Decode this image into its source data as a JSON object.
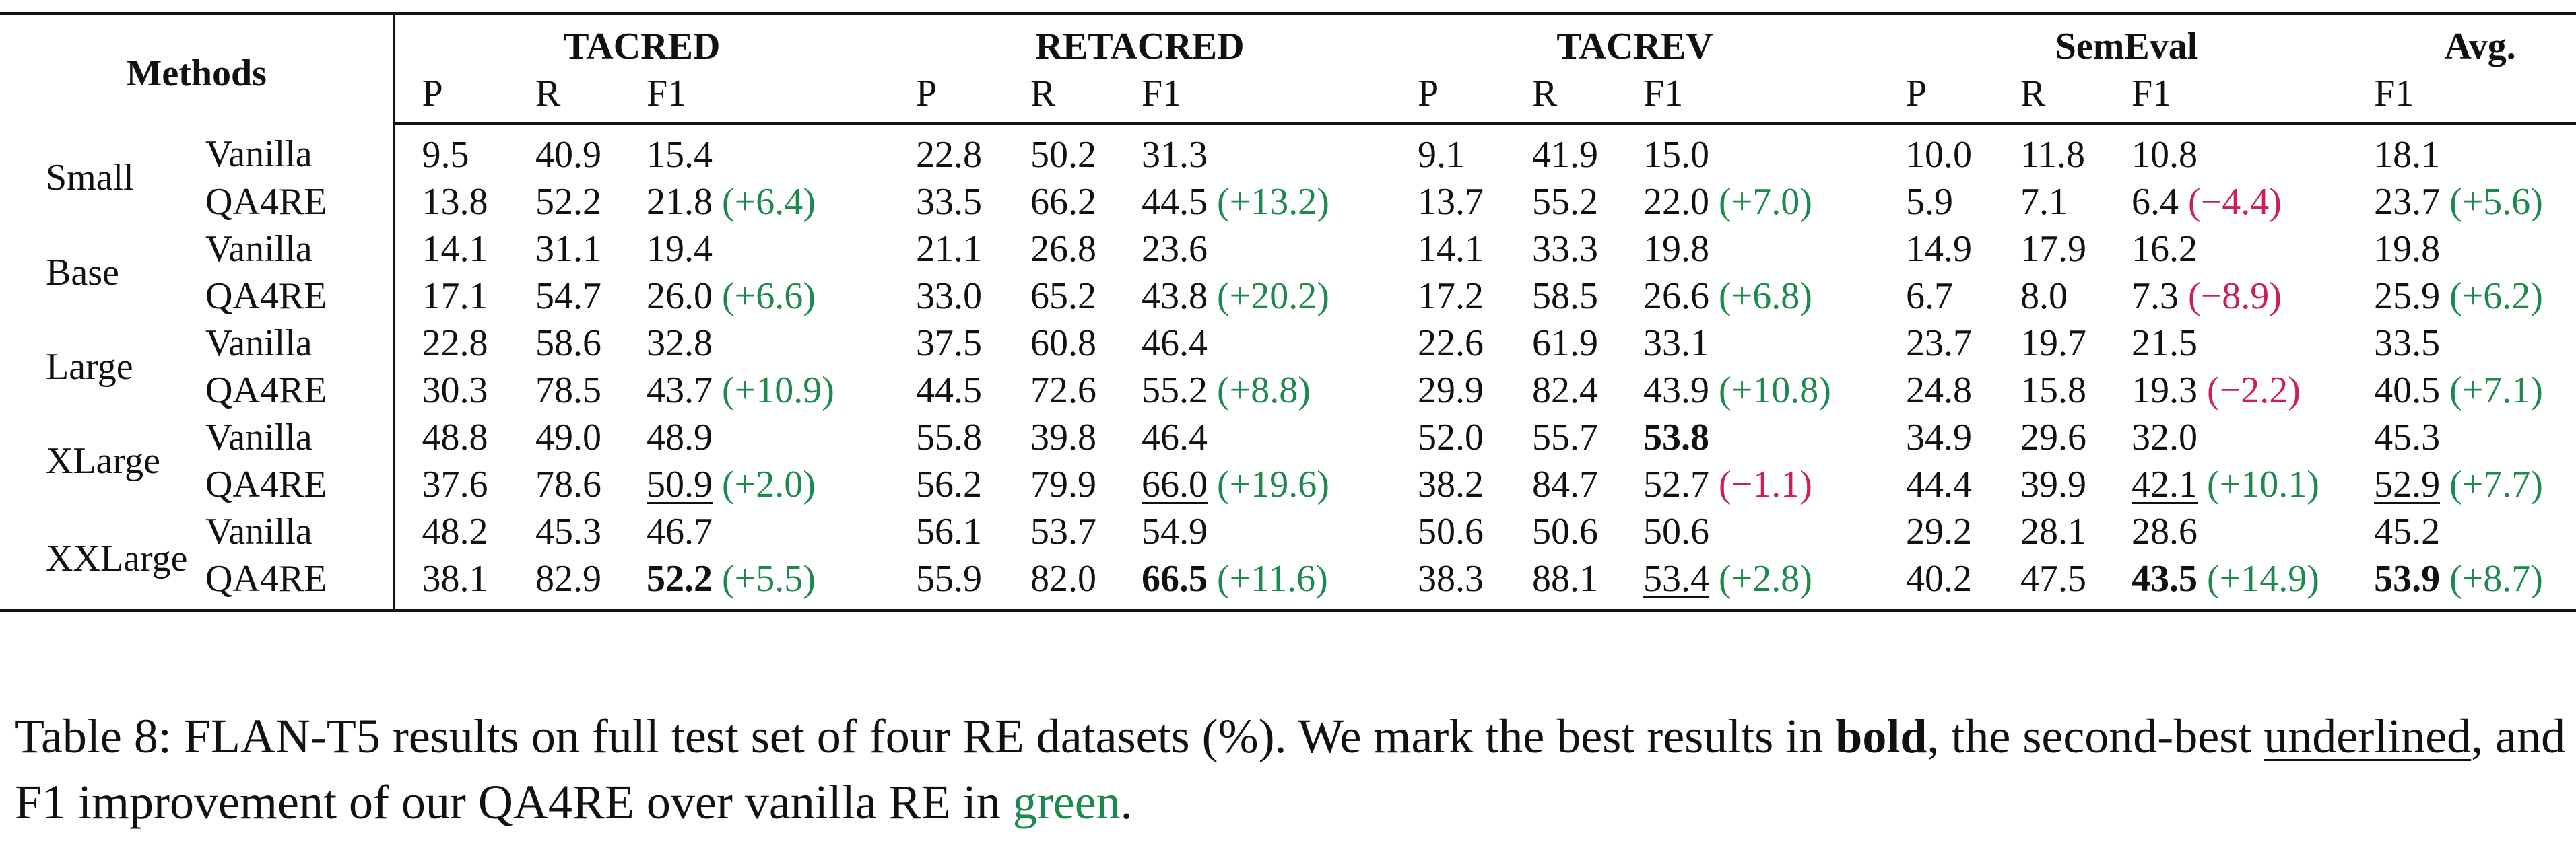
{
  "table": {
    "header": {
      "methods": "Methods",
      "groups": [
        "TACRED",
        "RETACRED",
        "TACREV",
        "SemEval",
        "Avg."
      ],
      "sub_prf": [
        "P",
        "R",
        "F1"
      ],
      "sub_avg": "F1"
    },
    "groups": [
      {
        "size": "Small",
        "rows": [
          {
            "method": "Vanilla",
            "cells": [
              "9.5",
              "40.9",
              "15.4",
              "22.8",
              "50.2",
              "31.3",
              "9.1",
              "41.9",
              "15.0",
              "10.0",
              "11.8",
              "10.8",
              "18.1"
            ]
          },
          {
            "method": "QA4RE",
            "cells": [
              "13.8",
              "52.2",
              "21.8",
              "33.5",
              "66.2",
              "44.5",
              "13.7",
              "55.2",
              "22.0",
              "5.9",
              "7.1",
              "6.4",
              "23.7"
            ]
          }
        ]
      },
      {
        "size": "Base",
        "rows": [
          {
            "method": "Vanilla",
            "cells": [
              "14.1",
              "31.1",
              "19.4",
              "21.1",
              "26.8",
              "23.6",
              "14.1",
              "33.3",
              "19.8",
              "14.9",
              "17.9",
              "16.2",
              "19.8"
            ]
          },
          {
            "method": "QA4RE",
            "cells": [
              "17.1",
              "54.7",
              "26.0",
              "33.0",
              "65.2",
              "43.8",
              "17.2",
              "58.5",
              "26.6",
              "6.7",
              "8.0",
              "7.3",
              "25.9"
            ]
          }
        ]
      },
      {
        "size": "Large",
        "rows": [
          {
            "method": "Vanilla",
            "cells": [
              "22.8",
              "58.6",
              "32.8",
              "37.5",
              "60.8",
              "46.4",
              "22.6",
              "61.9",
              "33.1",
              "23.7",
              "19.7",
              "21.5",
              "33.5"
            ]
          },
          {
            "method": "QA4RE",
            "cells": [
              "30.3",
              "78.5",
              "43.7",
              "44.5",
              "72.6",
              "55.2",
              "29.9",
              "82.4",
              "43.9",
              "24.8",
              "15.8",
              "19.3",
              "40.5"
            ]
          }
        ]
      },
      {
        "size": "XLarge",
        "rows": [
          {
            "method": "Vanilla",
            "cells": [
              "48.8",
              "49.0",
              "48.9",
              "55.8",
              "39.8",
              "46.4",
              "52.0",
              "55.7",
              "53.8",
              "34.9",
              "29.6",
              "32.0",
              "45.3"
            ]
          },
          {
            "method": "QA4RE",
            "cells": [
              "37.6",
              "78.6",
              "50.9",
              "56.2",
              "79.9",
              "66.0",
              "38.2",
              "84.7",
              "52.7",
              "44.4",
              "39.9",
              "42.1",
              "52.9"
            ]
          }
        ]
      },
      {
        "size": "XXLarge",
        "rows": [
          {
            "method": "Vanilla",
            "cells": [
              "48.2",
              "45.3",
              "46.7",
              "56.1",
              "53.7",
              "54.9",
              "50.6",
              "50.6",
              "50.6",
              "29.2",
              "28.1",
              "28.6",
              "45.2"
            ]
          },
          {
            "method": "QA4RE",
            "cells": [
              "38.1",
              "82.9",
              "52.2",
              "55.9",
              "82.0",
              "66.5",
              "38.3",
              "88.1",
              "53.4",
              "40.2",
              "47.5",
              "43.5",
              "53.9"
            ]
          }
        ]
      }
    ],
    "deltas": {
      "Small": {
        "tacred": "(+6.4)",
        "retacred": "(+13.2)",
        "tacrev": "(+7.0)",
        "semeval": "(−4.4)",
        "avg": "(+5.6)"
      },
      "Base": {
        "tacred": "(+6.6)",
        "retacred": "(+20.2)",
        "tacrev": "(+6.8)",
        "semeval": "(−8.9)",
        "avg": "(+6.2)"
      },
      "Large": {
        "tacred": "(+10.9)",
        "retacred": "(+8.8)",
        "tacrev": "(+10.8)",
        "semeval": "(−2.2)",
        "avg": "(+7.1)"
      },
      "XLarge": {
        "tacred": "(+2.0)",
        "retacred": "(+19.6)",
        "tacrev": "(−1.1)",
        "semeval": "(+10.1)",
        "avg": "(+7.7)"
      },
      "XXLarge": {
        "tacred": "(+5.5)",
        "retacred": "(+11.6)",
        "tacrev": "(+2.8)",
        "semeval": "(+14.9)",
        "avg": "(+8.7)"
      }
    }
  },
  "caption": {
    "prefix": "Table 8: FLAN-T5 results on full test set of four RE datasets (%). We mark the best results in ",
    "bold_word": "bold",
    "mid": ", the second-best ",
    "underlined_word": "underlined",
    "after_under": ", and F1 improvement of our QA4RE over vanilla RE in ",
    "green_word": "green",
    "end": "."
  },
  "colors": {
    "positive_delta": "#1c8a4c",
    "negative_delta": "#cc1f5a",
    "text": "#111111"
  }
}
